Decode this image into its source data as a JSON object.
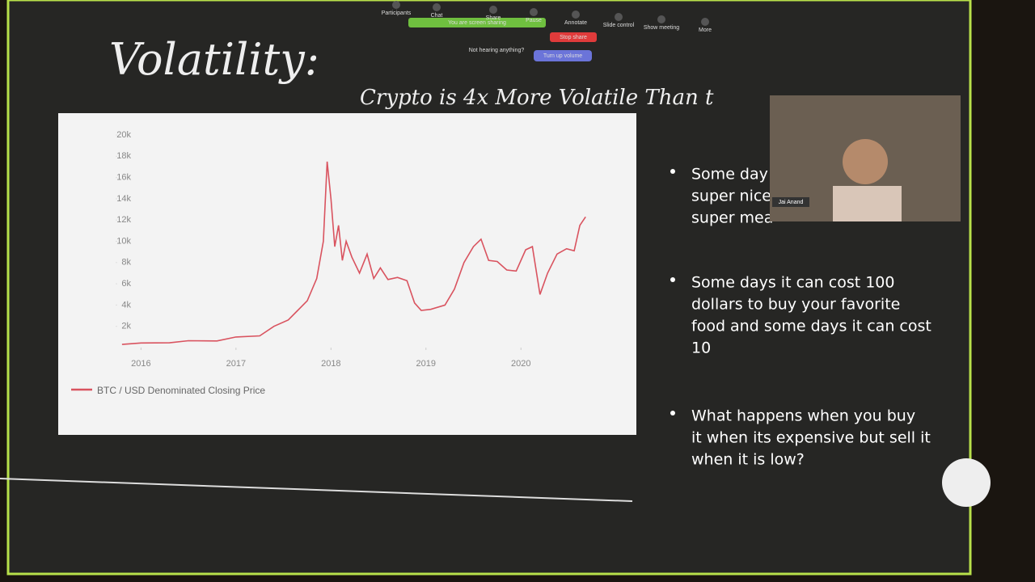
{
  "toolbar": {
    "items": [
      "Participants",
      "Chat",
      "Share",
      "Pause",
      "Annotate",
      "Slide control",
      "Show meeting",
      "More"
    ],
    "sharing_notice": "You are screen sharing",
    "stop_share": "Stop share",
    "audio_prompt": "Not hearing anything?",
    "audio_button": "Turn up volume"
  },
  "slide": {
    "title": "Volatility:",
    "subtitle": "Crypto is 4x More Volatile Than t",
    "bullets": [
      [
        "Some day",
        "super nice",
        "super mea"
      ],
      [
        "Some days it can cost 100",
        "dollars to buy your favorite",
        "food and some days it can cost",
        "10"
      ],
      [
        "What happens when you buy",
        "it when its expensive but sell it",
        "when it is low?"
      ]
    ]
  },
  "video": {
    "name": "Jai Anand"
  },
  "chart_data": {
    "type": "line",
    "x": [
      2015.8,
      2016.0,
      2016.3,
      2016.5,
      2016.8,
      2017.0,
      2017.25,
      2017.4,
      2017.55,
      2017.65,
      2017.75,
      2017.85,
      2017.92,
      2017.96,
      2018.0,
      2018.04,
      2018.08,
      2018.12,
      2018.16,
      2018.22,
      2018.3,
      2018.38,
      2018.45,
      2018.52,
      2018.6,
      2018.7,
      2018.8,
      2018.88,
      2018.95,
      2019.05,
      2019.2,
      2019.3,
      2019.4,
      2019.5,
      2019.58,
      2019.66,
      2019.75,
      2019.85,
      2019.95,
      2020.05,
      2020.12,
      2020.2,
      2020.28,
      2020.38,
      2020.48,
      2020.56,
      2020.62,
      2020.68
    ],
    "series": [
      {
        "name": "BTC / USD Denominated Closing Price",
        "color": "#d9535f",
        "values": [
          300,
          430,
          450,
          650,
          620,
          1000,
          1100,
          2000,
          2600,
          3500,
          4400,
          6500,
          10000,
          17500,
          14000,
          9500,
          11500,
          8200,
          10000,
          8500,
          7000,
          8800,
          6500,
          7500,
          6400,
          6600,
          6300,
          4200,
          3500,
          3600,
          4000,
          5500,
          8000,
          9500,
          10200,
          8200,
          8100,
          7300,
          7200,
          9200,
          9500,
          5000,
          7000,
          8800,
          9300,
          9100,
          11500,
          12300
        ]
      }
    ],
    "xlim": [
      2015.75,
      2020.9
    ],
    "xticks": [
      2016,
      2017,
      2018,
      2019,
      2020
    ],
    "ylim": [
      0,
      20000
    ],
    "yticks": [
      {
        "value": 2000,
        "label": "2k"
      },
      {
        "value": 4000,
        "label": "4k"
      },
      {
        "value": 6000,
        "label": "6k"
      },
      {
        "value": 8000,
        "label": "8k"
      },
      {
        "value": 10000,
        "label": "10k"
      },
      {
        "value": 12000,
        "label": "12k"
      },
      {
        "value": 14000,
        "label": "14k"
      },
      {
        "value": 16000,
        "label": "16k"
      },
      {
        "value": 18000,
        "label": "18k"
      },
      {
        "value": 20000,
        "label": "20k"
      }
    ]
  }
}
